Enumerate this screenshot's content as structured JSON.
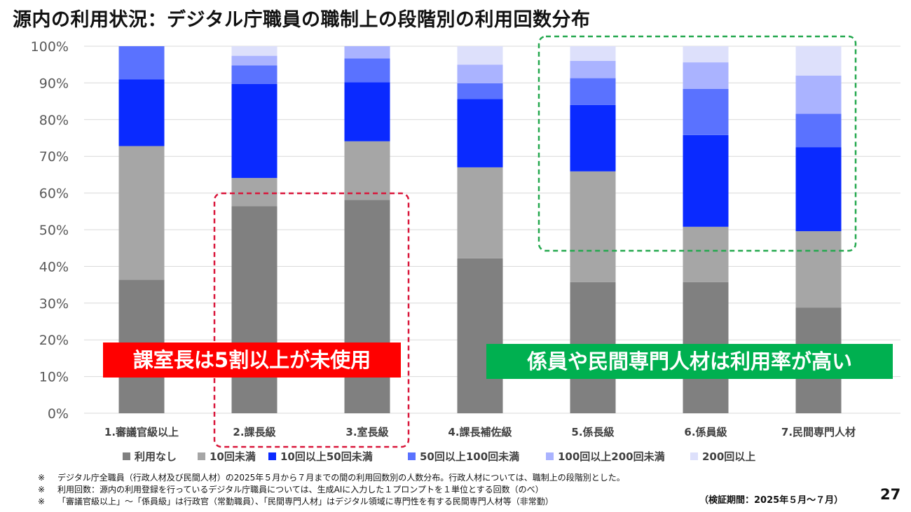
{
  "title": "源内の利用状況：デジタル庁職員の職制上の段階別の利用回数分布",
  "chart_data": {
    "type": "bar",
    "stacked": true,
    "percent": true,
    "categories": [
      "1.審議官級以上",
      "2.課長級",
      "3.室長級",
      "4.課長補佐級",
      "5.係長級",
      "6.係員級",
      "7.民間専門人材"
    ],
    "series": [
      {
        "name": "利用なし",
        "color": "#808080",
        "values": [
          36.4,
          56.4,
          58.1,
          42.2,
          35.7,
          35.7,
          28.8
        ]
      },
      {
        "name": "10回未満",
        "color": "#a6a6a6",
        "values": [
          36.4,
          7.7,
          16.0,
          24.8,
          30.2,
          15.1,
          20.8
        ]
      },
      {
        "name": "10回以上50回未満",
        "color": "#0a2aff",
        "values": [
          18.2,
          25.6,
          16.1,
          18.6,
          18.1,
          25.0,
          22.9
        ]
      },
      {
        "name": "50回以上100回未満",
        "color": "#5a72ff",
        "values": [
          9.0,
          5.1,
          6.5,
          4.3,
          7.3,
          12.6,
          9.1
        ]
      },
      {
        "name": "100回以上200回未満",
        "color": "#aab3ff",
        "values": [
          0.0,
          2.6,
          3.3,
          5.1,
          4.7,
          7.2,
          10.4
        ]
      },
      {
        "name": "200回以上",
        "color": "#dde0fb",
        "values": [
          0.0,
          2.6,
          0.0,
          5.0,
          4.0,
          4.4,
          8.0
        ]
      }
    ],
    "y_ticks": [
      "0%",
      "10%",
      "20%",
      "30%",
      "40%",
      "50%",
      "60%",
      "70%",
      "80%",
      "90%",
      "100%"
    ],
    "ylim": [
      0,
      100
    ],
    "legend_position": "bottom",
    "grid": true
  },
  "callouts": {
    "red": "課室長は5割以上が未使用",
    "green": "係員や民間専門人材は利用率が高い"
  },
  "colors": {
    "red_box": "#d9163a",
    "green_box": "#24a84e",
    "grid": "#d9d9d9"
  },
  "notes": [
    {
      "mark": "※",
      "text": "デジタル庁全職員（行政人材及び民間人材）の2025年５月から７月までの間の利用回数別の人数分布。行政人材については、職制上の段階別とした。"
    },
    {
      "mark": "※",
      "text": "利用回数：源内の利用登録を行っているデジタル庁職員については、生成AIに入力した１プロンプトを１単位とする回数（のべ）"
    },
    {
      "mark": "※",
      "text": "「審議官級以上」～「係員級」は行政官（常勤職員）、「民間専門人材」はデジタル領域に専門性を有する民間専門人材等（非常勤）"
    }
  ],
  "period": "（検証期間：2025年５月～７月）",
  "page_number": "27"
}
